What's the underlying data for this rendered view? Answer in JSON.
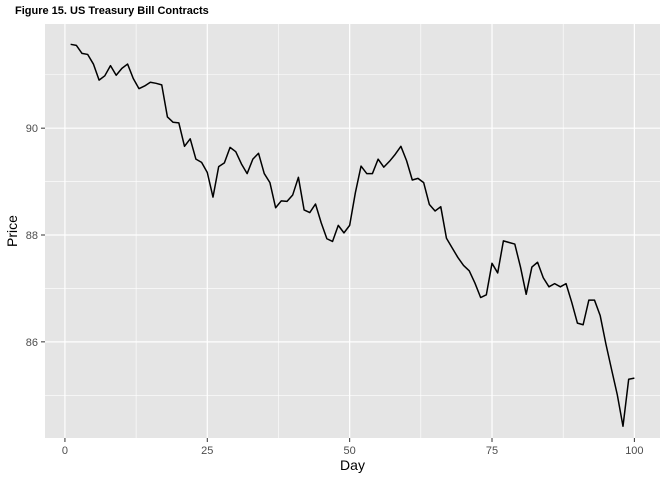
{
  "chart_data": {
    "type": "line",
    "title": "Figure 15. US Treasury Bill Contracts",
    "xlabel": "Day",
    "ylabel": "Price",
    "xlim": [
      -3.5,
      104.5
    ],
    "ylim": [
      84.2,
      91.95
    ],
    "x_ticks": [
      0,
      25,
      50,
      75,
      100
    ],
    "y_ticks": [
      86,
      88,
      90
    ],
    "grid": true,
    "legend": "none",
    "colors": {
      "panel": "#e5e5e5",
      "grid_major": "#ffffff",
      "line": "#000000"
    },
    "series": [
      {
        "x": [
          1,
          2,
          3,
          4,
          5,
          6,
          7,
          8,
          9,
          10,
          11,
          12,
          13,
          14,
          15,
          16,
          17,
          18,
          19,
          20,
          21,
          22,
          23,
          24,
          25,
          26,
          27,
          28,
          29,
          30,
          31,
          32,
          33,
          34,
          35,
          36,
          37,
          38,
          39,
          40,
          41,
          42,
          43,
          44,
          45,
          46,
          47,
          48,
          49,
          50,
          51,
          52,
          53,
          54,
          55,
          56,
          57,
          58,
          59,
          60,
          61,
          62,
          63,
          64,
          65,
          66,
          67,
          68,
          69,
          70,
          71,
          72,
          73,
          74,
          75,
          76,
          77,
          78,
          79,
          80,
          81,
          82,
          83,
          84,
          85,
          86,
          87,
          88,
          89,
          90,
          91,
          92,
          93,
          94,
          95,
          96,
          97,
          98,
          99,
          100
        ],
        "values": [
          91.57,
          91.55,
          91.4,
          91.38,
          91.2,
          90.9,
          90.98,
          91.17,
          90.99,
          91.12,
          91.2,
          90.93,
          90.74,
          90.79,
          90.86,
          90.84,
          90.81,
          90.21,
          90.11,
          90.1,
          89.66,
          89.8,
          89.42,
          89.36,
          89.17,
          88.71,
          89.28,
          89.35,
          89.64,
          89.56,
          89.33,
          89.15,
          89.42,
          89.53,
          89.15,
          88.98,
          88.51,
          88.64,
          88.63,
          88.75,
          89.08,
          88.47,
          88.42,
          88.58,
          88.23,
          87.93,
          87.88,
          88.18,
          88.04,
          88.18,
          88.79,
          89.29,
          89.15,
          89.15,
          89.42,
          89.27,
          89.38,
          89.51,
          89.66,
          89.39,
          89.03,
          89.06,
          88.98,
          88.57,
          88.45,
          88.53,
          87.94,
          87.76,
          87.58,
          87.43,
          87.33,
          87.1,
          86.83,
          86.88,
          87.47,
          87.29,
          87.89,
          87.86,
          87.83,
          87.4,
          86.89,
          87.4,
          87.49,
          87.2,
          87.03,
          87.09,
          87.03,
          87.09,
          86.74,
          86.35,
          86.32,
          86.78,
          86.78,
          86.49,
          85.96,
          85.48,
          85.01,
          84.42,
          85.3,
          85.32
        ]
      }
    ]
  }
}
